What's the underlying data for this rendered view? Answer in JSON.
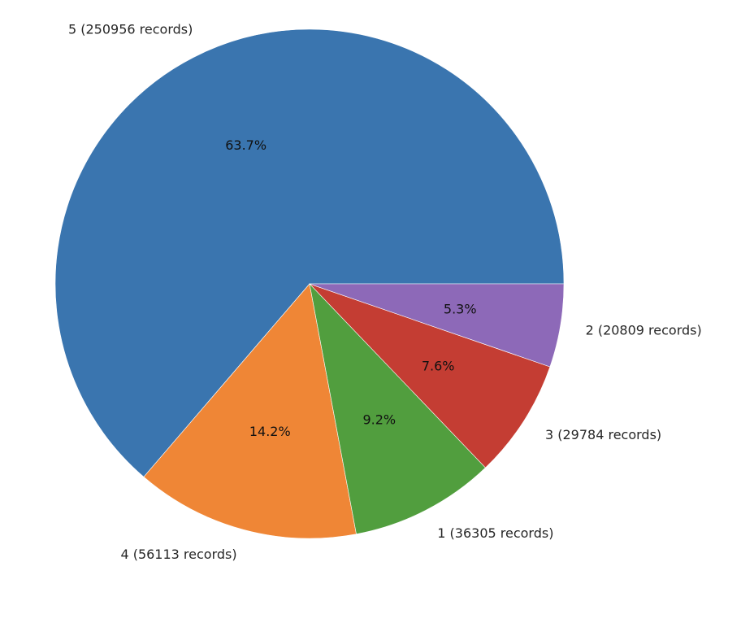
{
  "chart_data": {
    "type": "pie",
    "start_angle_deg": 0,
    "direction": "counterclockwise",
    "slices": [
      {
        "label": "5 (250956 records)",
        "value": 250956,
        "percent_label": "63.7%",
        "color": "#3a75af"
      },
      {
        "label": "4 (56113 records)",
        "value": 56113,
        "percent_label": "14.2%",
        "color": "#ef8636"
      },
      {
        "label": "1 (36305 records)",
        "value": 36305,
        "percent_label": "9.2%",
        "color": "#519e3e"
      },
      {
        "label": "3 (29784 records)",
        "value": 29784,
        "percent_label": "7.6%",
        "color": "#c43d33"
      },
      {
        "label": "2 (20809 records)",
        "value": 20809,
        "percent_label": "5.3%",
        "color": "#8d69b8"
      }
    ]
  }
}
